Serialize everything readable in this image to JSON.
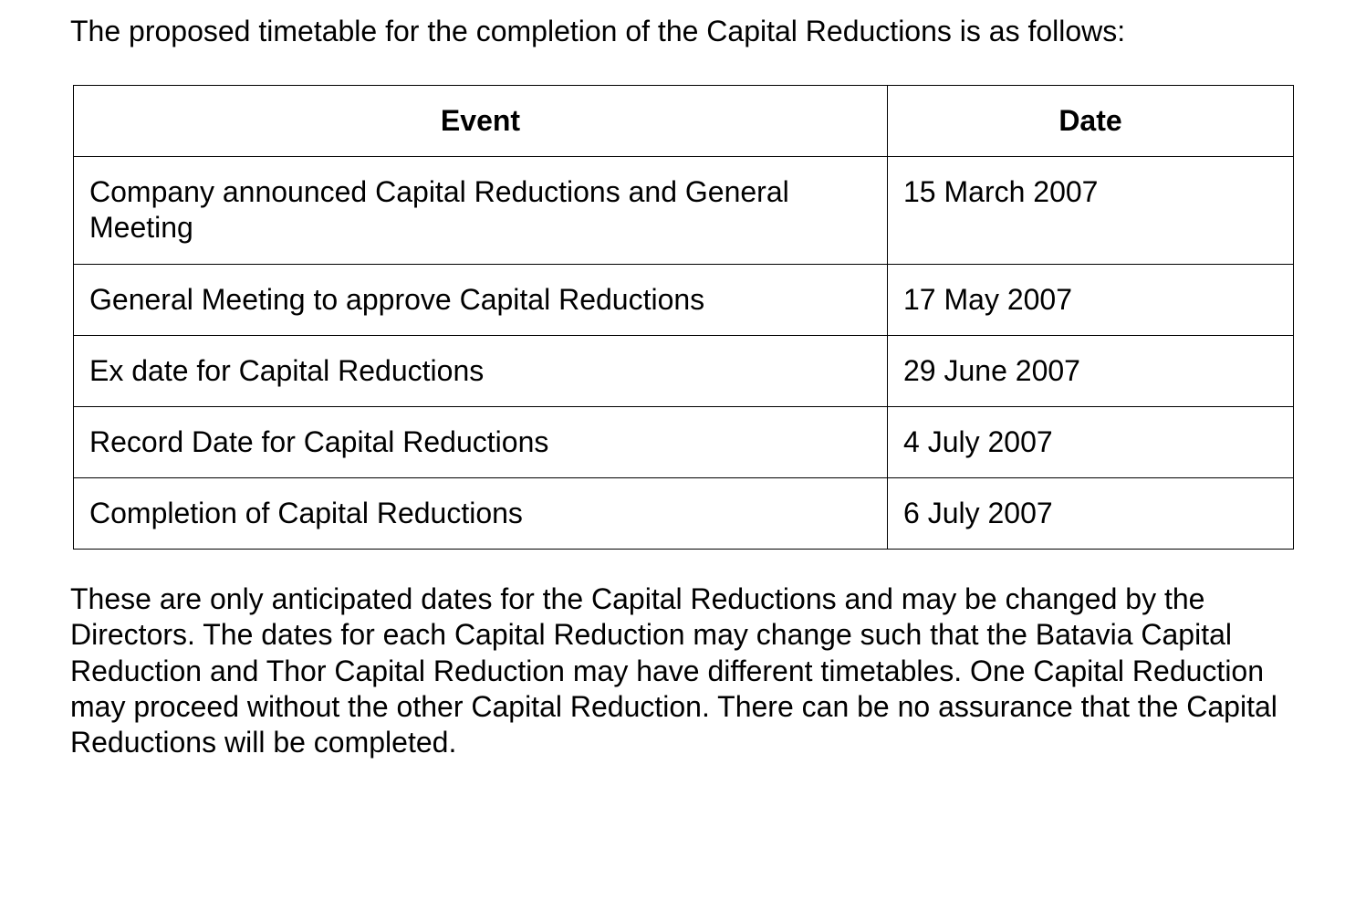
{
  "intro": "The proposed timetable for the completion of the Capital Reductions is as follows:",
  "table": {
    "headers": [
      "Event",
      "Date"
    ],
    "rows": [
      [
        "Company announced Capital Reductions and General Meeting",
        "15 March 2007"
      ],
      [
        "General Meeting to approve Capital Reductions",
        "17 May 2007"
      ],
      [
        "Ex date for Capital Reductions",
        "29 June 2007"
      ],
      [
        "Record Date for Capital Reductions",
        "4 July 2007"
      ],
      [
        "Completion of Capital Reductions",
        "6 July 2007"
      ]
    ]
  },
  "outro": "These are only anticipated dates for the Capital Reductions and may be changed by the Directors.  The dates for each Capital Reduction may change such that the Batavia Capital Reduction and Thor Capital Reduction may have different timetables.  One Capital Reduction may proceed without the other Capital Reduction.  There can be no assurance that the Capital Reductions will be completed."
}
